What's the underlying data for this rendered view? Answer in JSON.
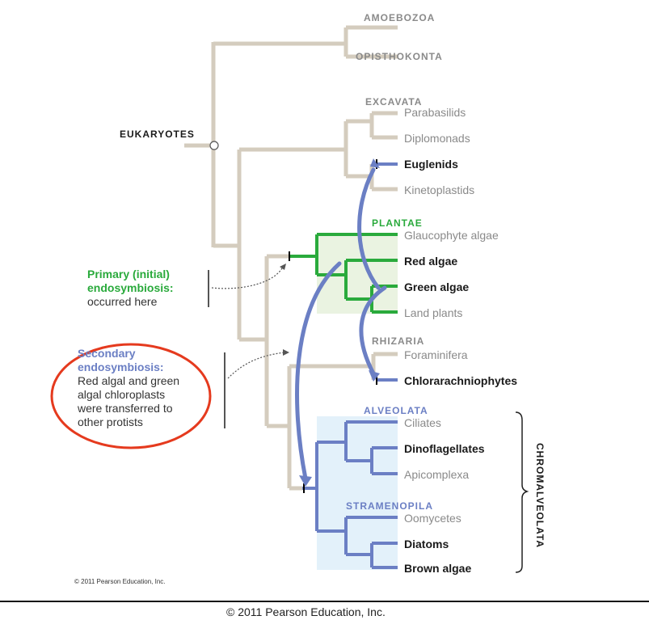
{
  "colors": {
    "gray_branch": "#d4ccbe",
    "green": "#2aaa3c",
    "blue": "#6b7fc4",
    "green_fill": "#eaf3e1",
    "blue_fill": "#e3f1fa",
    "red_circle": "#e53a1e"
  },
  "root_label": "EUKARYOTES",
  "groups": {
    "amoebozoa": "AMOEBOZOA",
    "opisthokonta": "OPISTHOKONTA",
    "excavata": "EXCAVATA",
    "plantae": "PLANTAE",
    "rhizaria": "RHIZARIA",
    "alveolata": "ALVEOLATA",
    "stramenopila": "STRAMENOPILA",
    "chromalveolata": "CHROMALVEOLATA"
  },
  "taxa": {
    "parabasilids": "Parabasilids",
    "diplomonads": "Diplomonads",
    "euglenids": "Euglenids",
    "kinetoplastids": "Kinetoplastids",
    "glaucophyte": "Glaucophyte algae",
    "red_algae": "Red algae",
    "green_algae": "Green algae",
    "land_plants": "Land plants",
    "foraminifera": "Foraminifera",
    "chlorarachniophytes": "Chlorarachniophytes",
    "ciliates": "Ciliates",
    "dinoflagellates": "Dinoflagellates",
    "apicomplexa": "Apicomplexa",
    "oomycetes": "Oomycetes",
    "diatoms": "Diatoms",
    "brown_algae": "Brown algae"
  },
  "primary_note": {
    "line1": "Primary (initial)",
    "line2": "endosymbiosis:",
    "line3": "occurred here"
  },
  "secondary_note": {
    "line1": "Secondary",
    "line2": "endosymbiosis:",
    "line3": "Red algal and green",
    "line4": "algal chloroplasts",
    "line5": "were transferred to",
    "line6": "other protists"
  },
  "inner_copyright": "© 2011 Pearson Education, Inc.",
  "footer_copyright": "© 2011 Pearson Education, Inc."
}
